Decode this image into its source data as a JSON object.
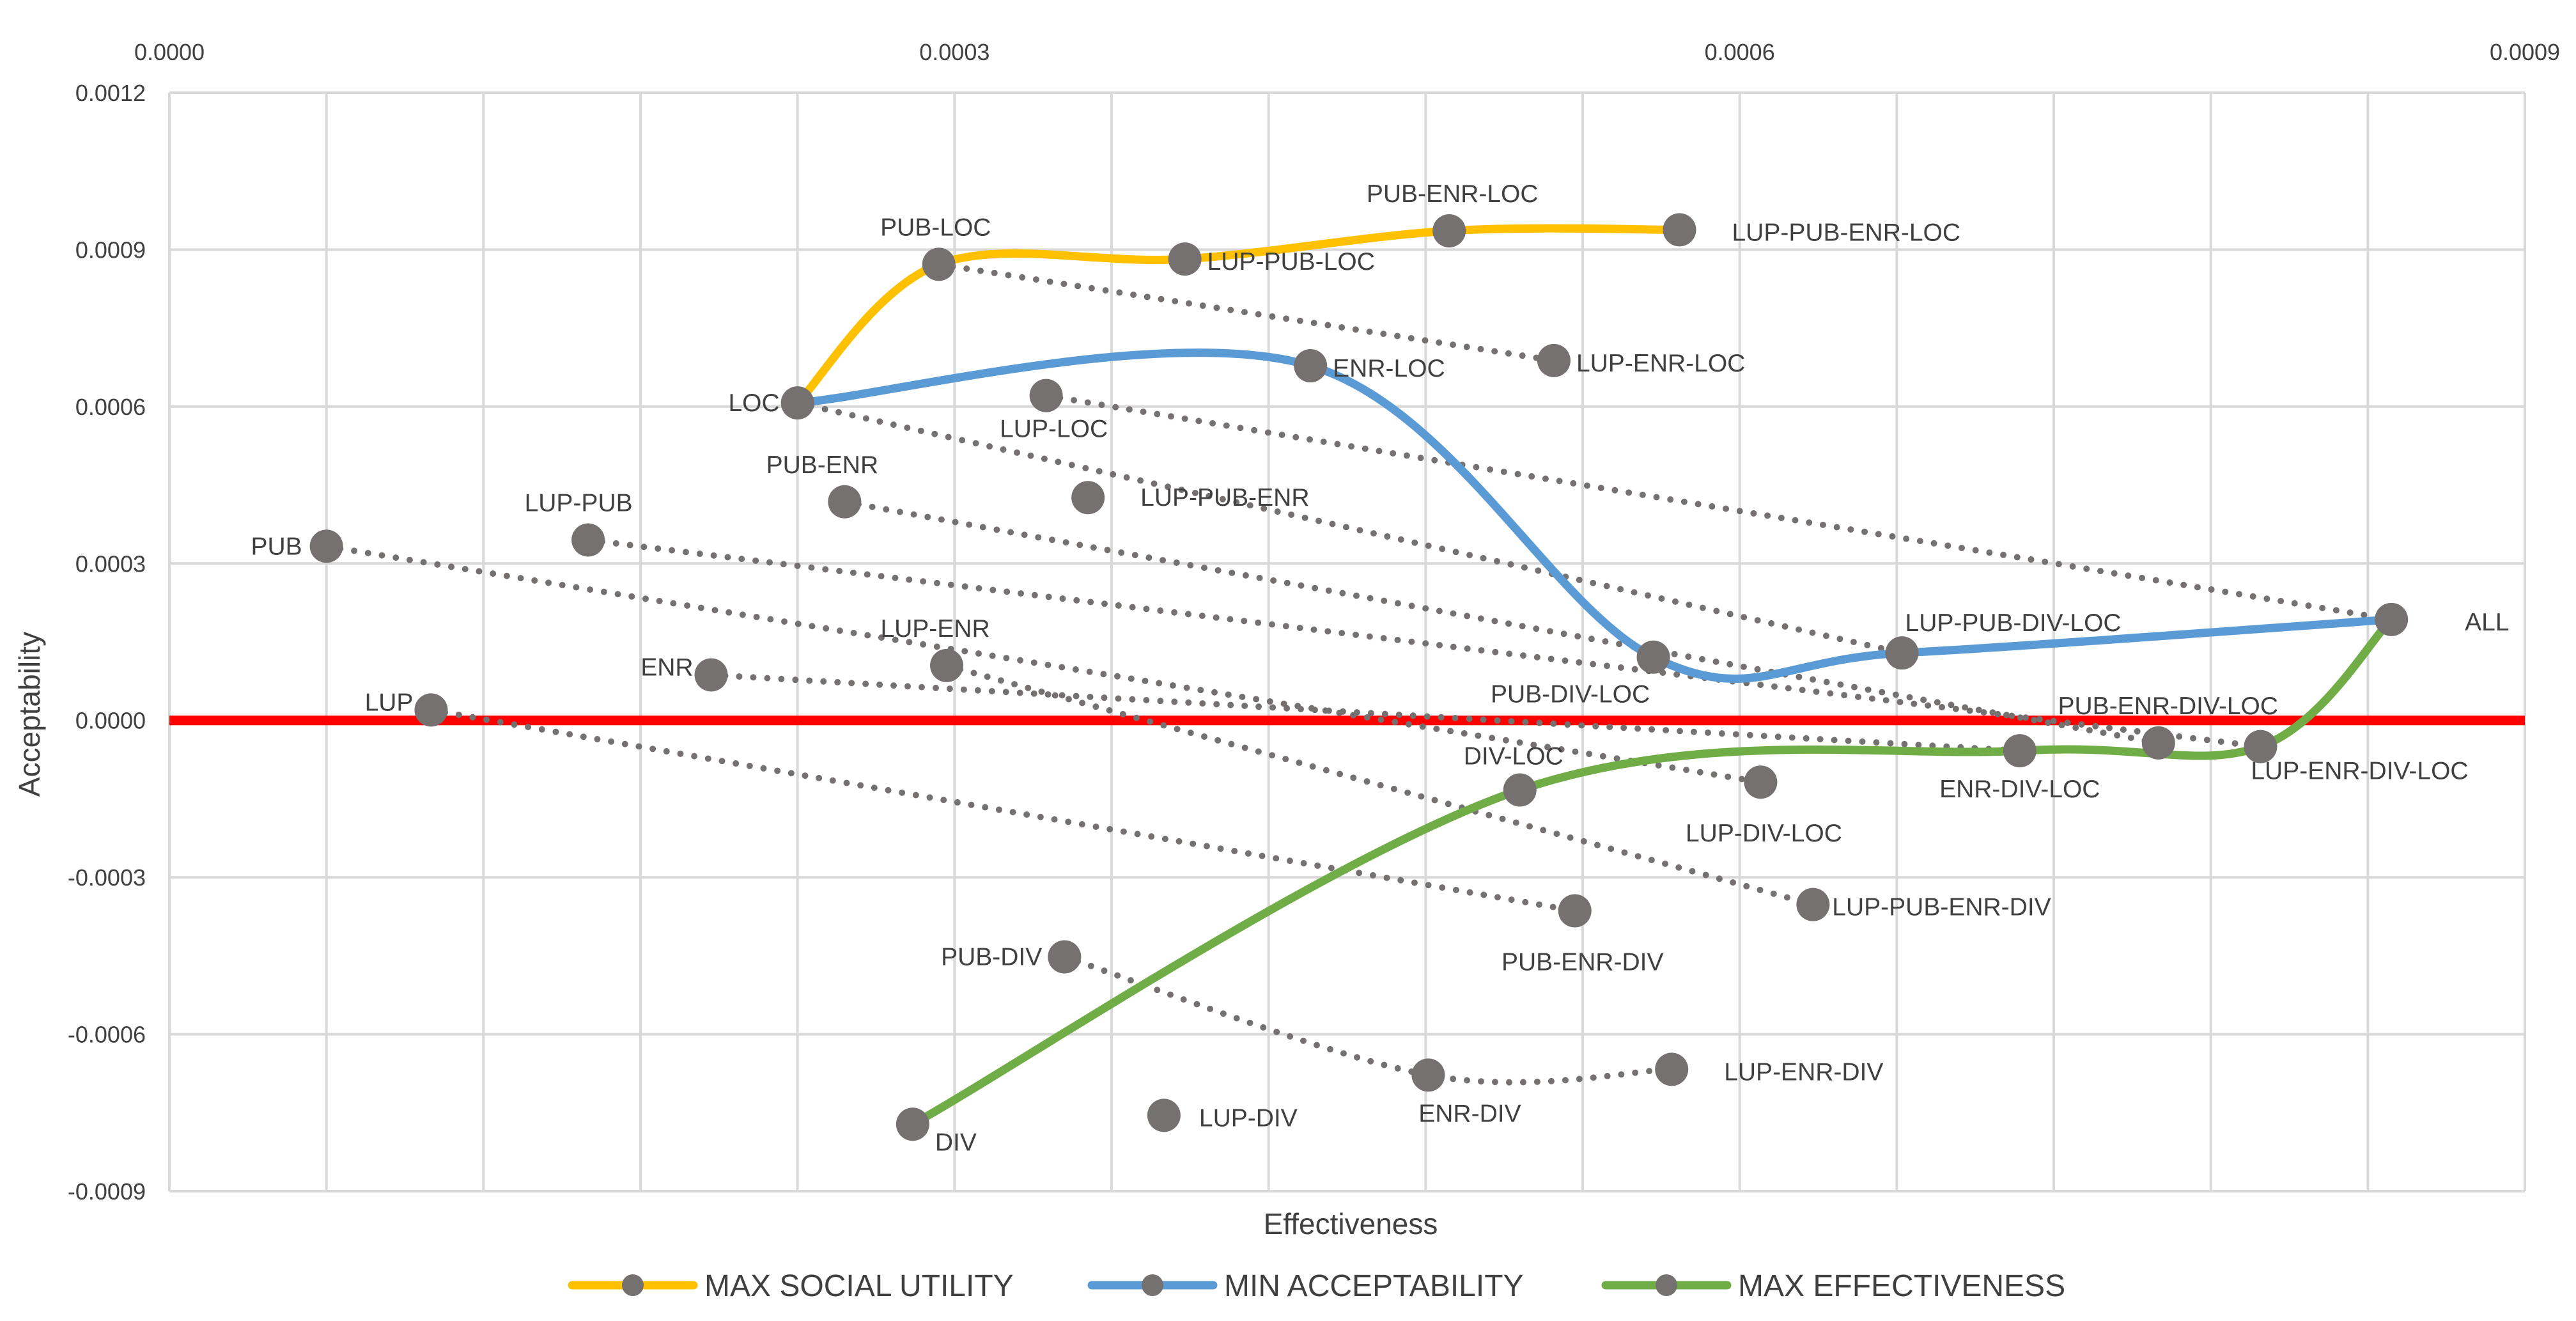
{
  "chart_data": {
    "type": "scatter",
    "title": "",
    "xlabel": "Effectiveness",
    "ylabel": "Acceptability",
    "xlim": [
      0,
      0.0009
    ],
    "ylim": [
      -0.0009,
      0.0012
    ],
    "x_ticks": [
      "0.0000",
      "0.0003",
      "0.0006",
      "0.0009"
    ],
    "y_ticks": [
      "0.0012",
      "0.0009",
      "0.0006",
      "0.0003",
      "0.0000",
      "-0.0003",
      "-0.0006",
      "-0.0009"
    ],
    "x_tick_values": [
      0,
      0.0003,
      0.0006,
      0.0009
    ],
    "y_tick_values": [
      0.0012,
      0.0009,
      0.0006,
      0.0003,
      0,
      -0.0003,
      -0.0006,
      -0.0009
    ],
    "x_axis_position": "top",
    "grid": true,
    "legend_position": "bottom",
    "reference_line": {
      "y": 0,
      "color": "#ff0000"
    },
    "colors": {
      "points": "#767171",
      "dotted": "#767171",
      "grid": "#d9d9d9",
      "text": "#404040"
    },
    "points": [
      {
        "label": "PUB",
        "x": 6e-05,
        "y": 0.000333
      },
      {
        "label": "LUP",
        "x": 0.0001,
        "y": 2e-05
      },
      {
        "label": "LUP-PUB",
        "x": 0.00016,
        "y": 0.000345
      },
      {
        "label": "ENR",
        "x": 0.000207,
        "y": 8.7e-05
      },
      {
        "label": "LOC",
        "x": 0.00024,
        "y": 0.000607
      },
      {
        "label": "PUB-ENR",
        "x": 0.000258,
        "y": 0.000418
      },
      {
        "label": "PUB-LOC",
        "x": 0.000294,
        "y": 0.000872
      },
      {
        "label": "DIV",
        "x": 0.000284,
        "y": -0.000772
      },
      {
        "label": "LUP-ENR",
        "x": 0.000297,
        "y": 0.000105
      },
      {
        "label": "LUP-LOC",
        "x": 0.000335,
        "y": 0.000621
      },
      {
        "label": "PUB-DIV",
        "x": 0.000342,
        "y": -0.000452
      },
      {
        "label": "LUP-PUB-ENR",
        "x": 0.000351,
        "y": 0.000426
      },
      {
        "label": "LUP-DIV",
        "x": 0.00038,
        "y": -0.000755
      },
      {
        "label": "LUP-PUB-LOC",
        "x": 0.000388,
        "y": 0.000882
      },
      {
        "label": "ENR-LOC",
        "x": 0.000436,
        "y": 0.000678
      },
      {
        "label": "ENR-DIV",
        "x": 0.000481,
        "y": -0.000678
      },
      {
        "label": "PUB-ENR-LOC",
        "x": 0.000489,
        "y": 0.000936
      },
      {
        "label": "DIV-LOC",
        "x": 0.000516,
        "y": -0.000133
      },
      {
        "label": "LUP-ENR-LOC",
        "x": 0.000529,
        "y": 0.000688
      },
      {
        "label": "PUB-ENR-DIV",
        "x": 0.000537,
        "y": -0.000364
      },
      {
        "label": "PUB-DIV-LOC",
        "x": 0.000567,
        "y": 0.000121
      },
      {
        "label": "LUP-ENR-DIV",
        "x": 0.000574,
        "y": -0.000667
      },
      {
        "label": "LUP-PUB-ENR-LOC",
        "x": 0.000577,
        "y": 0.000938
      },
      {
        "label": "LUP-DIV-LOC",
        "x": 0.000608,
        "y": -0.000118
      },
      {
        "label": "LUP-PUB-ENR-DIV",
        "x": 0.000628,
        "y": -0.000352
      },
      {
        "label": "LUP-PUB-DIV-LOC",
        "x": 0.000662,
        "y": 0.000129
      },
      {
        "label": "ENR-DIV-LOC",
        "x": 0.000707,
        "y": -5.8e-05
      },
      {
        "label": "PUB-ENR-DIV-LOC",
        "x": 0.00076,
        "y": -4.3e-05
      },
      {
        "label": "LUP-ENR-DIV-LOC",
        "x": 0.000799,
        "y": -5e-05
      },
      {
        "label": "ALL",
        "x": 0.000849,
        "y": 0.000193
      }
    ],
    "dotted_connections": [
      [
        "PUB-LOC",
        "LUP-ENR-LOC"
      ],
      [
        "LUP-LOC",
        "ALL"
      ],
      [
        "LOC",
        "LUP-PUB-DIV-LOC"
      ],
      [
        "PUB-ENR",
        "PUB-ENR-DIV-LOC"
      ],
      [
        "PUB",
        "LUP-DIV-LOC"
      ],
      [
        "LUP-PUB",
        "LUP-ENR-DIV-LOC"
      ],
      [
        "LUP-ENR",
        "LUP-PUB-ENR-DIV"
      ],
      [
        "ENR",
        "ENR-DIV-LOC"
      ],
      [
        "LUP",
        "PUB-ENR-DIV"
      ]
    ],
    "dotted_curves": [
      [
        "PUB-DIV",
        "ENR-DIV",
        "LUP-ENR-DIV"
      ]
    ],
    "series": [
      {
        "name": "MAX SOCIAL UTILITY",
        "color": "#ffc000",
        "path": [
          "LOC",
          "PUB-LOC",
          "LUP-PUB-LOC",
          "PUB-ENR-LOC",
          "LUP-PUB-ENR-LOC"
        ]
      },
      {
        "name": "MIN ACCEPTABILITY",
        "color": "#5b9bd5",
        "path": [
          "LOC",
          "ENR-LOC",
          "PUB-DIV-LOC",
          "LUP-PUB-DIV-LOC",
          "ALL"
        ]
      },
      {
        "name": "MAX EFFECTIVENESS",
        "color": "#70ad47",
        "path": [
          "DIV",
          "DIV-LOC",
          "ENR-DIV-LOC",
          "LUP-ENR-DIV-LOC",
          "ALL"
        ]
      }
    ]
  }
}
